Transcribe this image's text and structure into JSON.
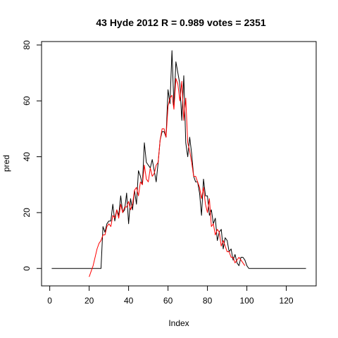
{
  "chart_data": {
    "type": "line",
    "title": "43 Hyde 2012 R = 0.989 votes = 2351",
    "xlabel": "Index",
    "ylabel": "pred",
    "xlim": [
      1,
      130
    ],
    "ylim": [
      -3,
      78
    ],
    "xticks": [
      0,
      20,
      40,
      60,
      80,
      100,
      120
    ],
    "yticks": [
      0,
      20,
      40,
      60,
      80
    ],
    "grid": false,
    "legend": "none",
    "series": [
      {
        "color": "#000000",
        "x": [
          1,
          2,
          3,
          4,
          5,
          6,
          7,
          8,
          9,
          10,
          11,
          12,
          13,
          14,
          15,
          16,
          17,
          18,
          19,
          20,
          21,
          22,
          23,
          24,
          25,
          26,
          27,
          28,
          29,
          30,
          31,
          32,
          33,
          34,
          35,
          36,
          37,
          38,
          39,
          40,
          41,
          42,
          43,
          44,
          45,
          46,
          47,
          48,
          49,
          50,
          51,
          52,
          53,
          54,
          55,
          56,
          57,
          58,
          59,
          60,
          61,
          62,
          63,
          64,
          65,
          66,
          67,
          68,
          69,
          70,
          71,
          72,
          73,
          74,
          75,
          76,
          77,
          78,
          79,
          80,
          81,
          82,
          83,
          84,
          85,
          86,
          87,
          88,
          89,
          90,
          91,
          92,
          93,
          94,
          95,
          96,
          97,
          98,
          99,
          100,
          101,
          102,
          103,
          104,
          105,
          106,
          107,
          108,
          109,
          110,
          111,
          112,
          113,
          114,
          115,
          116,
          117,
          118,
          119,
          120,
          121,
          122,
          123,
          124,
          125,
          126,
          127,
          128,
          129,
          130
        ],
        "y": [
          0,
          0,
          0,
          0,
          0,
          0,
          0,
          0,
          0,
          0,
          0,
          0,
          0,
          0,
          0,
          0,
          0,
          0,
          0,
          0,
          0,
          0,
          0,
          0,
          0,
          0,
          15,
          13,
          16,
          17,
          17,
          23,
          17,
          21,
          19,
          26,
          20,
          21,
          27,
          16,
          25,
          21,
          28,
          23,
          35,
          33,
          30,
          45,
          38,
          37,
          36,
          39,
          35,
          31,
          38,
          46,
          49,
          49,
          47,
          64,
          59,
          78,
          58,
          74,
          70,
          66,
          53,
          69,
          45,
          40,
          47,
          41,
          33,
          31,
          31,
          27,
          19,
          32,
          26,
          26,
          19,
          21,
          16,
          18,
          10,
          13,
          14,
          7,
          11,
          10,
          6,
          7,
          3,
          5,
          2,
          1,
          4,
          4,
          3,
          1,
          0,
          0,
          0,
          0,
          0,
          0,
          0,
          0,
          0,
          0,
          0,
          0,
          0,
          0,
          0,
          0,
          0,
          0,
          0,
          0,
          0,
          0,
          0,
          0,
          0,
          0,
          0,
          0,
          0,
          0
        ]
      },
      {
        "color": "#ff0000",
        "x": [
          20,
          21,
          22,
          23,
          24,
          25,
          26,
          27,
          28,
          29,
          30,
          31,
          32,
          33,
          34,
          35,
          36,
          37,
          38,
          39,
          40,
          41,
          42,
          43,
          44,
          45,
          46,
          47,
          48,
          49,
          50,
          51,
          52,
          53,
          54,
          55,
          56,
          57,
          58,
          59,
          60,
          61,
          62,
          63,
          64,
          65,
          66,
          67,
          68,
          69,
          70,
          71,
          72,
          73,
          74,
          75,
          76,
          77,
          78,
          79,
          80,
          81,
          82,
          83,
          84,
          85,
          86,
          87,
          88,
          89,
          90,
          91,
          92,
          93,
          94,
          95,
          96,
          97,
          98,
          99
        ],
        "y": [
          -3,
          -1,
          1,
          4,
          7,
          9,
          10,
          12,
          12,
          15,
          16,
          15,
          19,
          18,
          21,
          18,
          23,
          20,
          22,
          22,
          24,
          21,
          23,
          28,
          29,
          26,
          31,
          30,
          37,
          32,
          31,
          36,
          33,
          34,
          37,
          38,
          46,
          50,
          50,
          47,
          58,
          61,
          62,
          57,
          68,
          66,
          60,
          67,
          53,
          61,
          45,
          42,
          38,
          33,
          33,
          31,
          29,
          25,
          29,
          23,
          20,
          25,
          15,
          16,
          12,
          14,
          13,
          8,
          10,
          8,
          6,
          6,
          4,
          4,
          2,
          3,
          4,
          3,
          2,
          1
        ]
      }
    ]
  }
}
